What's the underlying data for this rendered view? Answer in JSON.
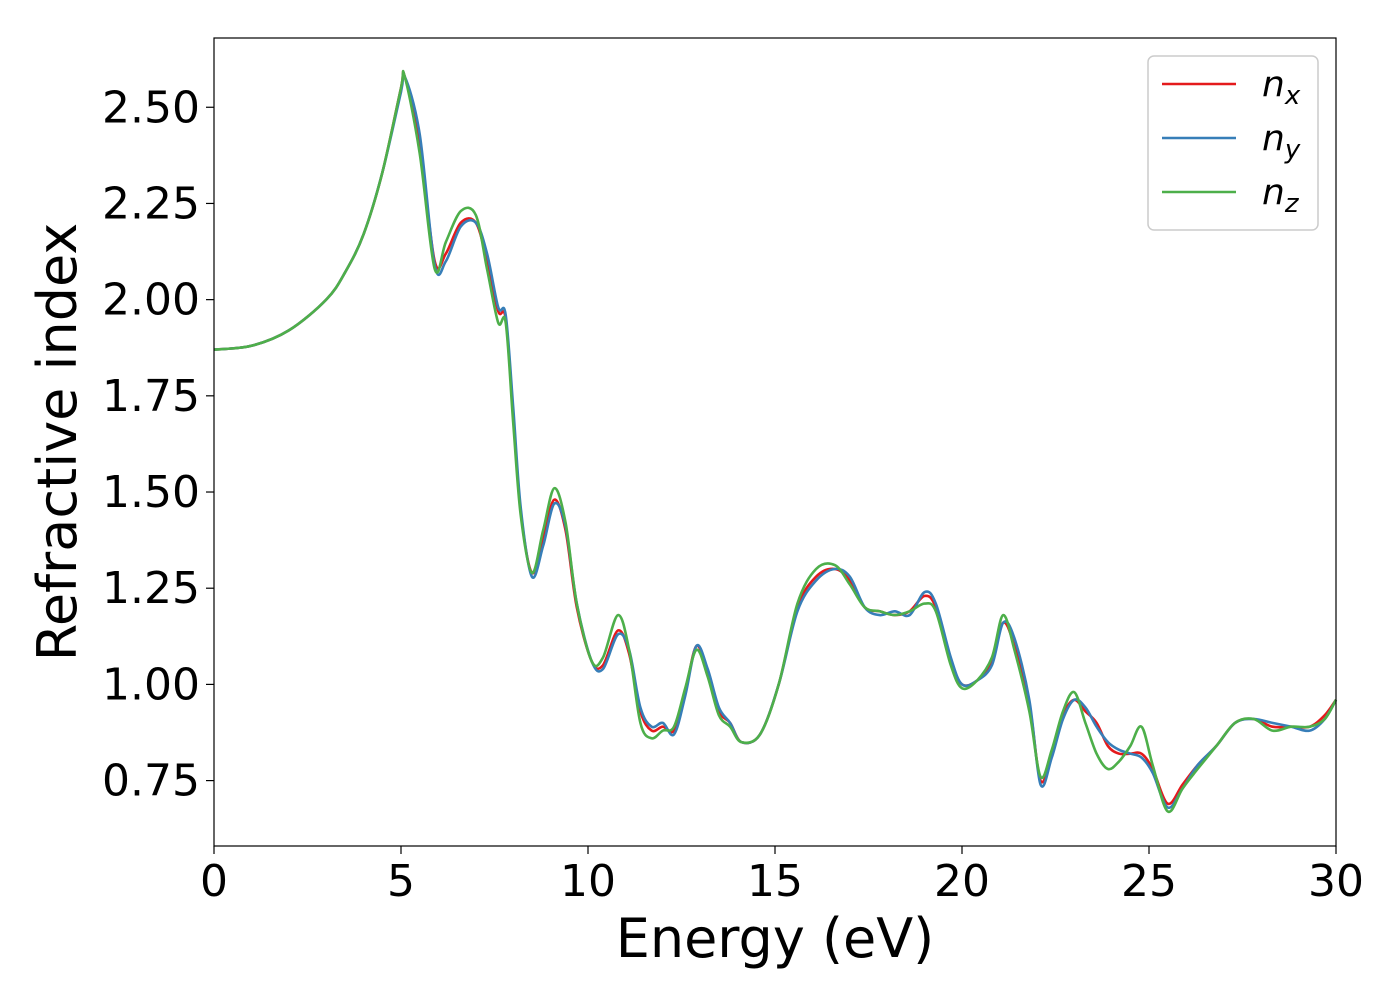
{
  "chart_data": {
    "type": "line",
    "title": "",
    "xlabel": "Energy (eV)",
    "ylabel": "Refractive index",
    "xlim": [
      0,
      30
    ],
    "ylim": [
      0.58,
      2.68
    ],
    "xticks": [
      0,
      5,
      10,
      15,
      20,
      25,
      30
    ],
    "xtick_labels": [
      "0",
      "5",
      "10",
      "15",
      "20",
      "25",
      "30"
    ],
    "yticks": [
      0.75,
      1.0,
      1.25,
      1.5,
      1.75,
      2.0,
      2.25,
      2.5
    ],
    "ytick_labels": [
      "0.75",
      "1.00",
      "1.25",
      "1.50",
      "1.75",
      "2.00",
      "2.25",
      "2.50"
    ],
    "grid": false,
    "legend_position": "top-right",
    "series": [
      {
        "name": "n_x",
        "label_base": "n",
        "label_sub": "x",
        "color": "#e41a1c",
        "x": [
          0,
          1,
          2,
          3,
          3.5,
          4,
          4.5,
          5,
          5.1,
          5.5,
          5.9,
          6.2,
          6.6,
          7.0,
          7.3,
          7.6,
          7.8,
          8.0,
          8.2,
          8.5,
          8.8,
          9.1,
          9.4,
          9.7,
          10.1,
          10.4,
          10.8,
          11.1,
          11.4,
          11.7,
          12.0,
          12.3,
          12.6,
          12.9,
          13.2,
          13.5,
          13.8,
          14.1,
          14.6,
          15.1,
          15.6,
          16.1,
          16.6,
          17.0,
          17.4,
          17.8,
          18.2,
          18.6,
          19.0,
          19.3,
          19.7,
          20.0,
          20.4,
          20.8,
          21.1,
          21.4,
          21.8,
          22.1,
          22.4,
          22.7,
          23.0,
          23.3,
          23.6,
          23.9,
          24.2,
          24.5,
          24.8,
          25.1,
          25.5,
          25.9,
          26.3,
          26.8,
          27.3,
          27.8,
          28.3,
          28.8,
          29.3,
          29.7,
          30
        ],
        "y": [
          1.87,
          1.88,
          1.92,
          2.0,
          2.07,
          2.17,
          2.33,
          2.55,
          2.58,
          2.4,
          2.1,
          2.12,
          2.2,
          2.2,
          2.1,
          1.97,
          1.95,
          1.7,
          1.45,
          1.29,
          1.38,
          1.48,
          1.4,
          1.2,
          1.06,
          1.05,
          1.14,
          1.08,
          0.93,
          0.88,
          0.89,
          0.88,
          0.98,
          1.1,
          1.03,
          0.93,
          0.9,
          0.85,
          0.87,
          1.0,
          1.2,
          1.28,
          1.3,
          1.27,
          1.2,
          1.19,
          1.18,
          1.19,
          1.23,
          1.2,
          1.06,
          1.0,
          1.01,
          1.06,
          1.16,
          1.1,
          0.95,
          0.75,
          0.82,
          0.92,
          0.96,
          0.93,
          0.9,
          0.84,
          0.82,
          0.82,
          0.82,
          0.78,
          0.69,
          0.74,
          0.79,
          0.84,
          0.9,
          0.91,
          0.89,
          0.89,
          0.89,
          0.92,
          0.96
        ]
      },
      {
        "name": "n_y",
        "label_base": "n",
        "label_sub": "y",
        "color": "#377eb8",
        "x": [
          0,
          1,
          2,
          3,
          3.5,
          4,
          4.5,
          5,
          5.1,
          5.5,
          5.9,
          6.2,
          6.6,
          7.0,
          7.3,
          7.6,
          7.8,
          8.0,
          8.2,
          8.5,
          8.8,
          9.1,
          9.4,
          9.7,
          10.1,
          10.4,
          10.8,
          11.1,
          11.4,
          11.7,
          12.0,
          12.3,
          12.6,
          12.9,
          13.2,
          13.5,
          13.8,
          14.1,
          14.6,
          15.1,
          15.6,
          16.1,
          16.6,
          17.0,
          17.4,
          17.8,
          18.2,
          18.6,
          19.0,
          19.3,
          19.7,
          20.0,
          20.4,
          20.8,
          21.1,
          21.4,
          21.8,
          22.1,
          22.4,
          22.7,
          23.0,
          23.3,
          23.6,
          23.9,
          24.2,
          24.5,
          24.8,
          25.1,
          25.5,
          25.9,
          26.3,
          26.8,
          27.3,
          27.8,
          28.3,
          28.8,
          29.3,
          29.7,
          30
        ],
        "y": [
          1.87,
          1.88,
          1.92,
          2.0,
          2.07,
          2.17,
          2.33,
          2.54,
          2.58,
          2.43,
          2.09,
          2.1,
          2.19,
          2.2,
          2.12,
          1.98,
          1.96,
          1.72,
          1.46,
          1.28,
          1.36,
          1.47,
          1.41,
          1.21,
          1.06,
          1.04,
          1.13,
          1.09,
          0.94,
          0.89,
          0.9,
          0.87,
          0.97,
          1.1,
          1.04,
          0.94,
          0.9,
          0.85,
          0.87,
          1.0,
          1.19,
          1.27,
          1.3,
          1.28,
          1.2,
          1.18,
          1.19,
          1.18,
          1.24,
          1.21,
          1.07,
          1.0,
          1.01,
          1.05,
          1.16,
          1.12,
          0.96,
          0.74,
          0.81,
          0.91,
          0.96,
          0.94,
          0.89,
          0.85,
          0.83,
          0.82,
          0.81,
          0.77,
          0.68,
          0.73,
          0.79,
          0.84,
          0.9,
          0.91,
          0.9,
          0.89,
          0.88,
          0.91,
          0.96
        ]
      },
      {
        "name": "n_z",
        "label_base": "n",
        "label_sub": "z",
        "color": "#4daf4a",
        "x": [
          0,
          1,
          2,
          3,
          3.5,
          4,
          4.5,
          5,
          5.1,
          5.5,
          5.9,
          6.2,
          6.6,
          7.0,
          7.3,
          7.6,
          7.8,
          8.0,
          8.2,
          8.5,
          8.8,
          9.1,
          9.4,
          9.7,
          10.1,
          10.4,
          10.8,
          11.1,
          11.4,
          11.7,
          12.0,
          12.3,
          12.6,
          12.9,
          13.2,
          13.5,
          13.8,
          14.1,
          14.6,
          15.1,
          15.6,
          16.1,
          16.6,
          17.0,
          17.4,
          17.8,
          18.2,
          18.6,
          19.0,
          19.3,
          19.7,
          20.0,
          20.4,
          20.8,
          21.1,
          21.4,
          21.8,
          22.1,
          22.4,
          22.7,
          23.0,
          23.3,
          23.6,
          23.9,
          24.2,
          24.5,
          24.8,
          25.1,
          25.5,
          25.9,
          26.3,
          26.8,
          27.3,
          27.8,
          28.3,
          28.8,
          29.3,
          29.7,
          30
        ],
        "y": [
          1.87,
          1.88,
          1.92,
          2.0,
          2.07,
          2.17,
          2.33,
          2.55,
          2.58,
          2.38,
          2.08,
          2.15,
          2.23,
          2.22,
          2.08,
          1.94,
          1.94,
          1.68,
          1.44,
          1.29,
          1.4,
          1.51,
          1.42,
          1.21,
          1.06,
          1.07,
          1.18,
          1.09,
          0.9,
          0.86,
          0.88,
          0.89,
          0.99,
          1.09,
          1.02,
          0.92,
          0.89,
          0.85,
          0.87,
          1.0,
          1.21,
          1.3,
          1.31,
          1.26,
          1.2,
          1.19,
          1.18,
          1.19,
          1.21,
          1.19,
          1.05,
          0.99,
          1.01,
          1.07,
          1.18,
          1.09,
          0.93,
          0.76,
          0.83,
          0.93,
          0.98,
          0.9,
          0.82,
          0.78,
          0.8,
          0.84,
          0.89,
          0.79,
          0.67,
          0.73,
          0.78,
          0.84,
          0.9,
          0.91,
          0.88,
          0.89,
          0.89,
          0.91,
          0.96
        ]
      }
    ]
  }
}
